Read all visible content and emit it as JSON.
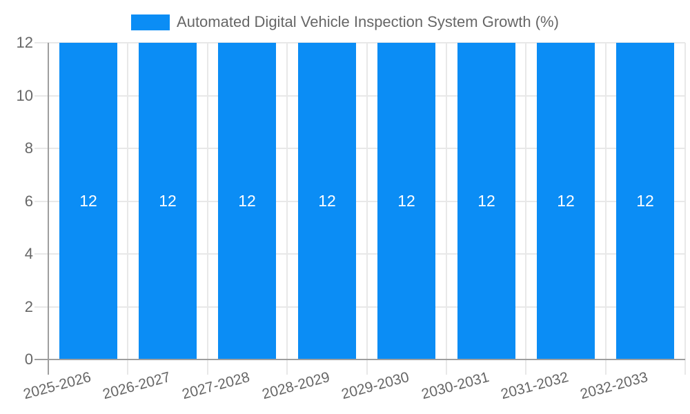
{
  "chart_data": {
    "type": "bar",
    "title": "Automated Digital Vehicle Inspection System Growth (%)",
    "categories": [
      "2025-2026",
      "2026-2027",
      "2027-2028",
      "2028-2029",
      "2029-2030",
      "2030-2031",
      "2031-2032",
      "2032-2033"
    ],
    "values": [
      12,
      12,
      12,
      12,
      12,
      12,
      12,
      12
    ],
    "value_labels": [
      "12",
      "12",
      "12",
      "12",
      "12",
      "12",
      "12",
      "12"
    ],
    "yticks": [
      0,
      2,
      4,
      6,
      8,
      10,
      12
    ],
    "ylim": [
      0,
      12
    ],
    "xlabel": "",
    "ylabel": "",
    "grid": true,
    "legend_position": "top",
    "legend_entries": [
      "Automated Digital Vehicle Inspection System Growth (%)"
    ],
    "bar_color": "#0b8df5",
    "value_label_color": "#ffffff",
    "text_color": "#666666",
    "grid_color": "#e8e8e8",
    "axis_color": "#9e9e9e",
    "background_color": "#ffffff"
  }
}
